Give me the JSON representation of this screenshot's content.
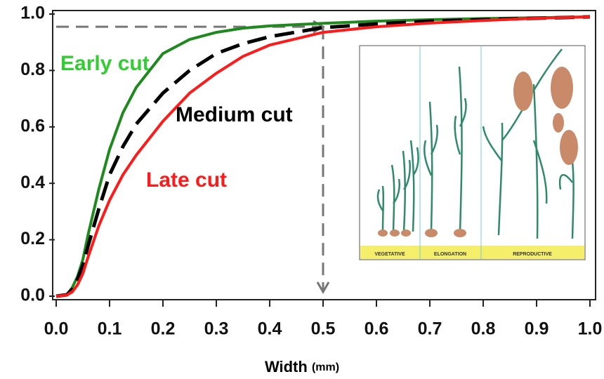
{
  "chart_data": {
    "type": "line",
    "xlabel": "Width",
    "xlabel_unit": "(mm)",
    "x": [
      0,
      0.02,
      0.03,
      0.04,
      0.05,
      0.06,
      0.08,
      0.1,
      0.125,
      0.15,
      0.2,
      0.25,
      0.3,
      0.35,
      0.4,
      0.5,
      0.6,
      0.7,
      0.8,
      0.9,
      1.0
    ],
    "series": [
      {
        "name": "Early cut",
        "color": "#1e8a1e",
        "dash": false,
        "values": [
          0,
          0.005,
          0.03,
          0.07,
          0.13,
          0.22,
          0.38,
          0.52,
          0.65,
          0.74,
          0.86,
          0.91,
          0.935,
          0.95,
          0.958,
          0.967,
          0.975,
          0.98,
          0.984,
          0.987,
          0.99
        ]
      },
      {
        "name": "Medium cut",
        "color": "#000000",
        "dash": true,
        "values": [
          0,
          0.005,
          0.025,
          0.06,
          0.11,
          0.18,
          0.31,
          0.43,
          0.53,
          0.61,
          0.72,
          0.8,
          0.86,
          0.895,
          0.92,
          0.952,
          0.965,
          0.975,
          0.98,
          0.985,
          0.99
        ]
      },
      {
        "name": "Late cut",
        "color": "#ff1a1a",
        "dash": false,
        "values": [
          0,
          0.004,
          0.015,
          0.04,
          0.08,
          0.14,
          0.25,
          0.34,
          0.43,
          0.5,
          0.62,
          0.72,
          0.79,
          0.85,
          0.89,
          0.935,
          0.955,
          0.968,
          0.977,
          0.985,
          0.99
        ]
      }
    ],
    "annotations": [
      {
        "text": "Early cut",
        "color": "#33cc33"
      },
      {
        "text": "Medium cut",
        "color": "#000000"
      },
      {
        "text": "Late cut",
        "color": "#ff1a1a"
      }
    ],
    "reference": {
      "x": 0.5,
      "y": 0.955
    },
    "inset_labels": [
      "VEGETATIVE",
      "ELONGATION",
      "REPRODUCTIVE"
    ],
    "xlim": [
      0,
      1.0
    ],
    "ylim": [
      0,
      1.0
    ],
    "xticks": [
      {
        "value": 0,
        "label": "0.0"
      },
      0.1,
      0.2,
      0.3,
      0.4,
      0.5,
      0.6,
      0.7,
      0.8,
      0.9,
      {
        "value": 1.0,
        "label": "1.0"
      }
    ],
    "yticks": [
      {
        "value": 0,
        "label": "0.0"
      },
      0.2,
      0.4,
      0.6,
      0.8,
      {
        "value": 1.0,
        "label": "1.0"
      }
    ]
  }
}
